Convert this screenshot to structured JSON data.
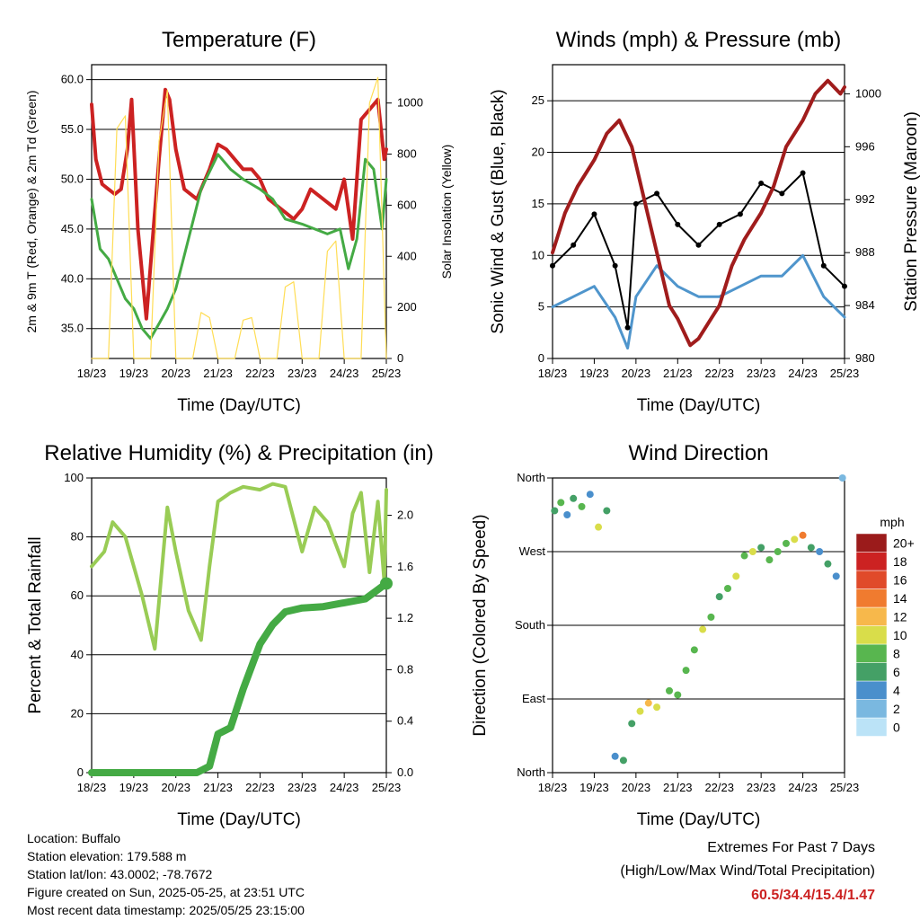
{
  "chart_data": [
    {
      "type": "line",
      "title": "Temperature (F)",
      "xlabel": "Time (Day/UTC)",
      "ylabel_left": "2m & 9m T (Red, Orange) & 2m Td (Green)",
      "ylabel_right": "Solar Insolation (Yellow)",
      "x_ticks": [
        "18/23",
        "19/23",
        "20/23",
        "21/23",
        "22/23",
        "23/23",
        "24/23",
        "25/23"
      ],
      "y_left_ticks": [
        "35.0",
        "40.0",
        "45.0",
        "50.0",
        "55.0",
        "60.0"
      ],
      "y_right_ticks": [
        "0",
        "200",
        "400",
        "600",
        "800",
        "1000"
      ],
      "ylim": [
        32,
        61.5
      ],
      "ylim_right": [
        0,
        1150
      ],
      "grid": true,
      "series": [
        {
          "name": "2m T",
          "axis": "left",
          "color": "#cc2222",
          "x": [
            0,
            0.1,
            0.25,
            0.4,
            0.55,
            0.7,
            0.85,
            0.95,
            1.1,
            1.3,
            1.45,
            1.6,
            1.75,
            1.85,
            2.0,
            2.2,
            2.5,
            2.8,
            3.0,
            3.2,
            3.4,
            3.6,
            3.8,
            4.0,
            4.2,
            4.5,
            4.8,
            5.0,
            5.2,
            5.5,
            5.8,
            6.0,
            6.2,
            6.4,
            6.6,
            6.8,
            6.95,
            7.0
          ],
          "values": [
            57.5,
            52,
            49.5,
            49,
            48.5,
            49,
            53,
            58,
            45,
            36,
            44,
            52,
            59,
            58,
            53,
            49,
            48,
            51,
            53.5,
            53,
            52,
            51,
            51,
            50,
            48,
            47,
            46,
            47,
            49,
            48,
            47,
            50,
            44,
            56,
            57,
            58,
            52,
            53
          ]
        },
        {
          "name": "2m Td",
          "axis": "left",
          "color": "#44aa44",
          "x": [
            0,
            0.2,
            0.4,
            0.6,
            0.8,
            1.0,
            1.2,
            1.4,
            1.6,
            1.8,
            2.0,
            2.3,
            2.6,
            3.0,
            3.3,
            3.6,
            4.0,
            4.3,
            4.6,
            5.0,
            5.3,
            5.6,
            5.9,
            6.1,
            6.3,
            6.5,
            6.7,
            6.9,
            7.0
          ],
          "values": [
            48,
            43,
            42,
            40,
            38,
            37,
            35,
            34,
            35.5,
            37,
            39,
            44,
            49,
            52.5,
            51,
            50,
            49,
            48,
            46,
            45.5,
            45,
            44.5,
            45,
            41,
            44,
            52,
            51,
            45,
            50
          ]
        },
        {
          "name": "Solar Insolation",
          "axis": "right",
          "color": "#ffdd55",
          "x": [
            0,
            0.4,
            0.6,
            0.8,
            1.0,
            1.4,
            1.6,
            1.8,
            2.0,
            2.4,
            2.6,
            2.8,
            3.0,
            3.4,
            3.6,
            3.8,
            4.0,
            4.4,
            4.6,
            4.8,
            5.0,
            5.4,
            5.6,
            5.8,
            6.0,
            6.4,
            6.6,
            6.8,
            7.0
          ],
          "values": [
            0,
            0,
            900,
            950,
            0,
            0,
            850,
            1050,
            0,
            0,
            180,
            160,
            0,
            0,
            150,
            160,
            0,
            0,
            280,
            300,
            0,
            0,
            420,
            460,
            0,
            0,
            1000,
            1100,
            0
          ]
        }
      ]
    },
    {
      "type": "line",
      "title": "Winds (mph) & Pressure (mb)",
      "xlabel": "Time (Day/UTC)",
      "ylabel_left": "Sonic Wind & Gust (Blue, Black)",
      "ylabel_right": "Station Pressure (Maroon)",
      "x_ticks": [
        "18/23",
        "19/23",
        "20/23",
        "21/23",
        "22/23",
        "23/23",
        "24/23",
        "25/23"
      ],
      "y_left_ticks": [
        "0",
        "5",
        "10",
        "15",
        "20",
        "25"
      ],
      "y_right_ticks": [
        "980",
        "984",
        "988",
        "992",
        "996",
        "1000"
      ],
      "ylim": [
        0,
        28.5
      ],
      "ylim_right": [
        980,
        1002.2
      ],
      "grid": true,
      "series": [
        {
          "name": "Sonic Wind",
          "axis": "left",
          "color": "#4f95cc",
          "x": [
            0,
            0.5,
            1.0,
            1.5,
            1.8,
            2.0,
            2.5,
            3.0,
            3.5,
            4.0,
            4.5,
            5.0,
            5.5,
            6.0,
            6.5,
            7.0
          ],
          "values": [
            5,
            6,
            7,
            4,
            1,
            6,
            9,
            7,
            6,
            6,
            7,
            8,
            8,
            10,
            6,
            4
          ]
        },
        {
          "name": "Gust",
          "axis": "left",
          "color": "#000000",
          "x": [
            0,
            0.5,
            1.0,
            1.5,
            1.8,
            2.0,
            2.5,
            3.0,
            3.5,
            4.0,
            4.5,
            5.0,
            5.5,
            6.0,
            6.5,
            7.0
          ],
          "values": [
            9,
            11,
            14,
            9,
            3,
            15,
            16,
            13,
            11,
            13,
            14,
            17,
            16,
            18,
            9,
            7
          ]
        },
        {
          "name": "Station Pressure",
          "axis": "right",
          "color": "#a01c1c",
          "x": [
            0,
            0.3,
            0.6,
            1.0,
            1.3,
            1.6,
            1.9,
            2.2,
            2.5,
            2.8,
            3.0,
            3.3,
            3.5,
            3.8,
            4.0,
            4.3,
            4.6,
            5.0,
            5.3,
            5.6,
            6.0,
            6.3,
            6.6,
            6.9,
            7.0
          ],
          "values": [
            988,
            991,
            993,
            995,
            997,
            998,
            996,
            992,
            988,
            984,
            983,
            981,
            981.5,
            983,
            984,
            987,
            989,
            991,
            993,
            996,
            998,
            1000,
            1001,
            1000,
            1000.5
          ]
        }
      ]
    },
    {
      "type": "line",
      "title": "Relative Humidity (%) & Precipitation (in)",
      "xlabel": "Time (Day/UTC)",
      "ylabel_left": "Percent & Total Rainfall",
      "x_ticks": [
        "18/23",
        "19/23",
        "20/23",
        "21/23",
        "22/23",
        "23/23",
        "24/23",
        "25/23"
      ],
      "y_left_ticks": [
        "0",
        "20",
        "40",
        "60",
        "80",
        "100"
      ],
      "y_right_ticks": [
        "0.0",
        "0.4",
        "0.8",
        "1.2",
        "1.6",
        "2.0"
      ],
      "ylim": [
        0,
        100
      ],
      "ylim_right": [
        0,
        2.29
      ],
      "grid": true,
      "series": [
        {
          "name": "Relative Humidity",
          "axis": "left",
          "color": "#99cc55",
          "x": [
            0,
            0.3,
            0.5,
            0.8,
            1.0,
            1.2,
            1.5,
            1.8,
            2.0,
            2.3,
            2.6,
            2.8,
            3.0,
            3.3,
            3.6,
            4.0,
            4.3,
            4.6,
            5.0,
            5.3,
            5.6,
            6.0,
            6.2,
            6.4,
            6.6,
            6.8,
            6.95,
            7.0
          ],
          "values": [
            70,
            75,
            85,
            80,
            70,
            60,
            42,
            90,
            75,
            55,
            45,
            70,
            92,
            95,
            97,
            96,
            98,
            97,
            75,
            90,
            85,
            70,
            88,
            95,
            68,
            92,
            65,
            96
          ]
        },
        {
          "name": "Total Precipitation",
          "axis": "right",
          "color": "#44aa44",
          "x": [
            0,
            1,
            2,
            2.5,
            2.8,
            3.0,
            3.3,
            3.6,
            4.0,
            4.3,
            4.6,
            5.0,
            5.5,
            6.0,
            6.5,
            7.0
          ],
          "values": [
            0,
            0,
            0,
            0,
            0.05,
            0.3,
            0.35,
            0.65,
            1.0,
            1.15,
            1.25,
            1.28,
            1.29,
            1.32,
            1.35,
            1.47
          ]
        }
      ]
    },
    {
      "type": "scatter",
      "title": "Wind Direction",
      "xlabel": "Time (Day/UTC)",
      "ylabel": "Direction (Colored By Speed)",
      "x_ticks": [
        "18/23",
        "19/23",
        "20/23",
        "21/23",
        "22/23",
        "23/23",
        "24/23",
        "25/23"
      ],
      "y_ticks": [
        "North",
        "East",
        "South",
        "West",
        "North"
      ],
      "ylim": [
        0,
        360
      ],
      "legend_title": "mph",
      "color_levels": [
        "0",
        "2",
        "4",
        "6",
        "8",
        "10",
        "12",
        "14",
        "16",
        "18",
        "20+"
      ],
      "color_scale": [
        "#bbe3f7",
        "#7ab8e0",
        "#4a8fcc",
        "#44a066",
        "#58b64f",
        "#d9dd4a",
        "#f7b84b",
        "#f07b2f",
        "#e04a2a",
        "#cc2222",
        "#9b1b1b"
      ],
      "series": [
        {
          "name": "Wind Direction",
          "x": [
            0.05,
            0.2,
            0.35,
            0.5,
            0.7,
            0.9,
            1.1,
            1.3,
            1.5,
            1.7,
            1.9,
            2.1,
            2.3,
            2.5,
            2.8,
            3.0,
            3.2,
            3.4,
            3.6,
            3.8,
            4.0,
            4.2,
            4.4,
            4.6,
            4.8,
            5.0,
            5.2,
            5.4,
            5.6,
            5.8,
            6.0,
            6.2,
            6.4,
            6.6,
            6.8,
            6.95
          ],
          "values": [
            320,
            330,
            315,
            335,
            325,
            340,
            300,
            320,
            20,
            15,
            60,
            75,
            85,
            80,
            100,
            95,
            125,
            150,
            175,
            190,
            215,
            225,
            240,
            265,
            270,
            275,
            260,
            270,
            280,
            285,
            290,
            275,
            270,
            255,
            240,
            360
          ],
          "speeds": [
            5,
            7,
            3,
            6,
            8,
            4,
            9,
            6,
            3,
            5,
            6,
            10,
            12,
            9,
            8,
            7,
            8,
            8,
            9,
            8,
            6,
            8,
            10,
            7,
            9,
            6,
            8,
            7,
            8,
            10,
            14,
            5,
            4,
            6,
            3,
            2
          ]
        }
      ]
    }
  ],
  "footer": {
    "location": "Location: Buffalo",
    "elevation": "Station elevation: 179.588 m",
    "latlon": "Station lat/lon: 43.0002; -78.7672",
    "created": "Figure created on Sun, 2025-05-25, at 23:51 UTC",
    "recent": "Most recent data timestamp: 2025/05/25 23:15:00"
  },
  "extremes": {
    "title": "Extremes For Past 7 Days",
    "subtitle": "(High/Low/Max Wind/Total Precipitation)",
    "values": "60.5/34.4/15.4/1.47"
  },
  "colors": {
    "temperature": "#cc2222",
    "dewpoint": "#44aa44",
    "solar": "#ffdd55",
    "wind": "#4f95cc",
    "gust": "#000000",
    "pressure": "#a01c1c",
    "humidity": "#99cc55",
    "precip": "#44aa44",
    "extremes": "#cc2222"
  }
}
